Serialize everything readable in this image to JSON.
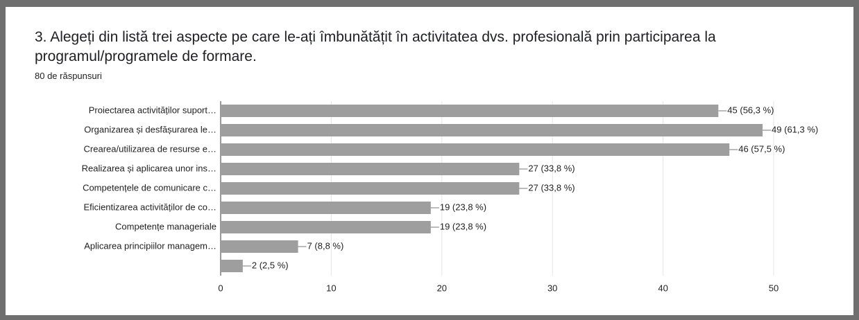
{
  "chart_data": {
    "type": "bar",
    "orientation": "horizontal",
    "title": "3. Alegeți din listă trei aspecte pe care le-ați îmbunătățit în activitatea dvs. profesională prin participarea la programul/programele de formare.",
    "subtitle": "80 de răspunsuri",
    "categories": [
      "Proiectarea activităților suport…",
      "Organizarea și desfășurarea le…",
      "Crearea/utilizarea de resurse e…",
      "Realizarea și aplicarea unor ins…",
      "Competențele de comunicare c…",
      "Eficientizarea activităților de co…",
      "Competențe manageriale",
      "Aplicarea principiilor managem…",
      null
    ],
    "values": [
      45,
      49,
      46,
      27,
      27,
      19,
      19,
      7,
      2
    ],
    "value_labels": [
      "45 (56,3 %)",
      "49 (61,3 %)",
      "46 (57,5 %)",
      "27 (33,8 %)",
      "27 (33,8 %)",
      "19 (23,8 %)",
      "19 (23,8 %)",
      "7 (8,8 %)",
      "2 (2,5 %)"
    ],
    "color": "#9e9e9e",
    "xlim": [
      0,
      50
    ],
    "xticks": [
      0,
      10,
      20,
      30,
      40,
      50
    ],
    "grid": true
  }
}
